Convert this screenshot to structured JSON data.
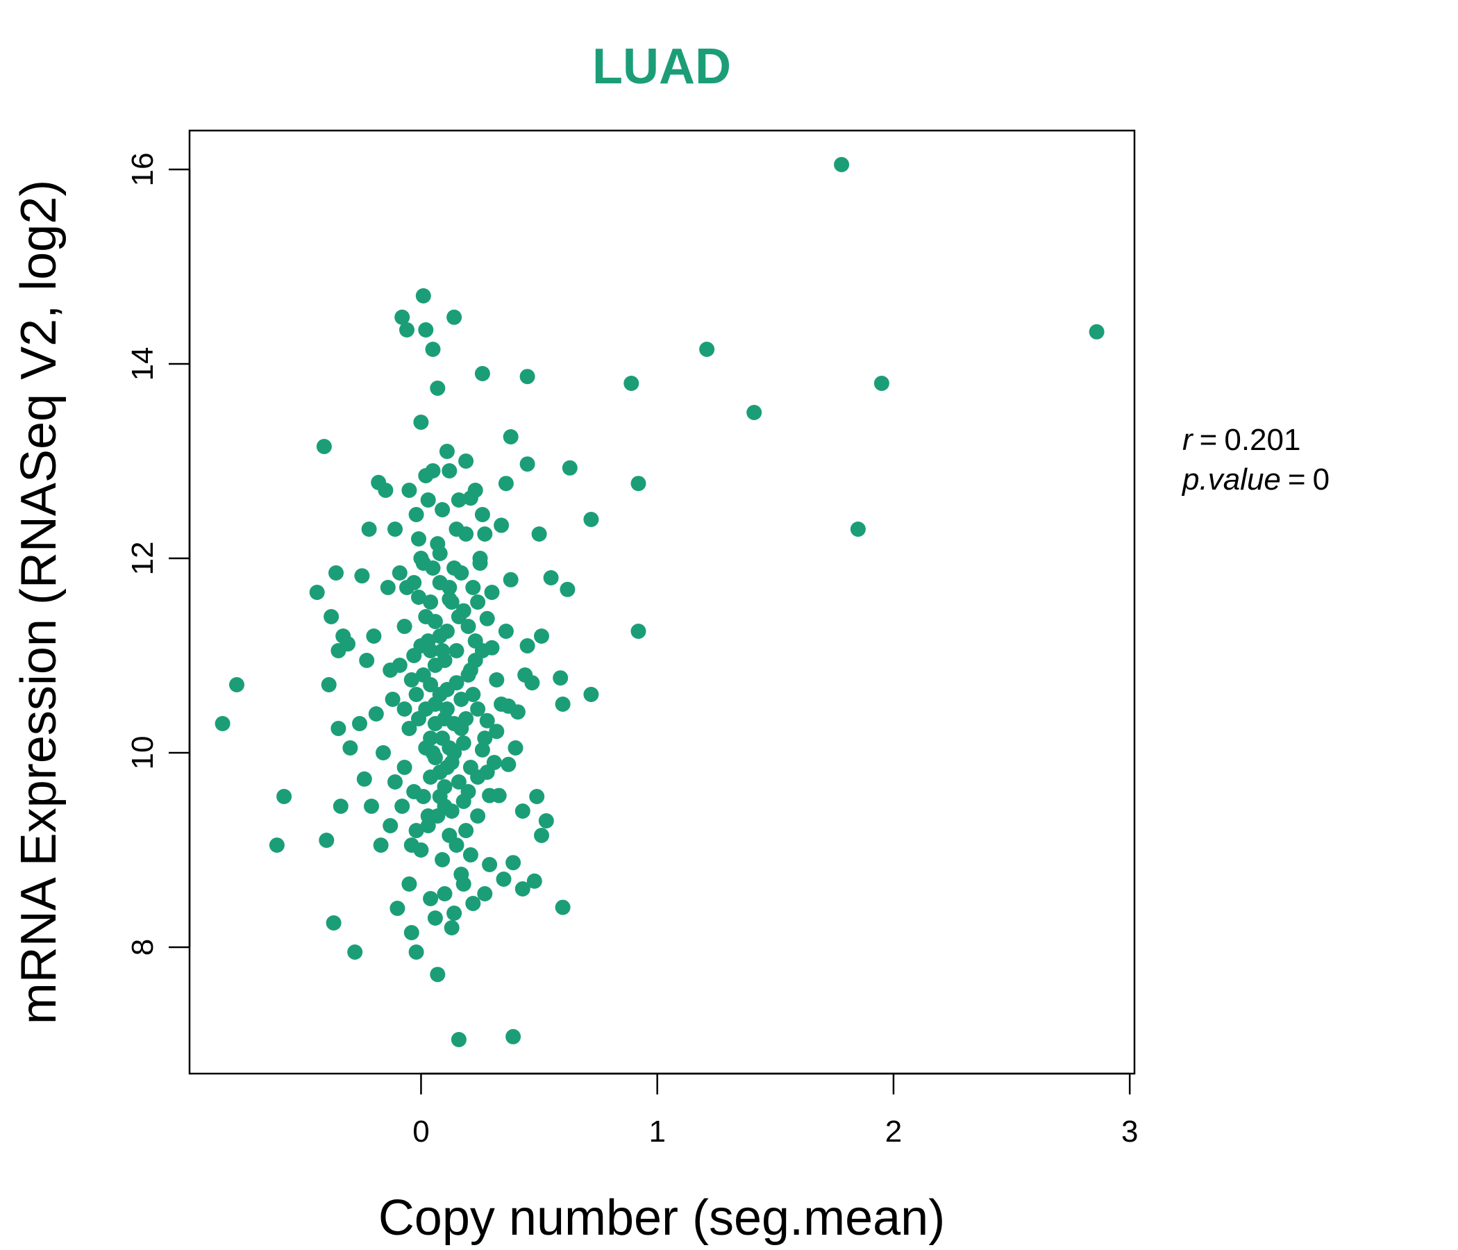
{
  "colors": {
    "accent": "#1b9e77",
    "axis": "#000000",
    "background": "#ffffff"
  },
  "chart_data": {
    "type": "scatter",
    "title": "LUAD",
    "xlabel": "Copy number (seg.mean)",
    "ylabel": "mRNA Expression (RNASeq V2, log2)",
    "xlim": [
      -0.98,
      3.02
    ],
    "ylim": [
      6.7,
      16.4
    ],
    "xticks": [
      0,
      1,
      2,
      3
    ],
    "yticks": [
      8,
      10,
      12,
      14,
      16
    ],
    "grid": false,
    "annotation": {
      "r_symbol": "r",
      "r_value": "0.201",
      "p_symbol": "p.value",
      "p_value": "0",
      "equals": "="
    },
    "series": [
      {
        "color": "#1b9e77",
        "points": [
          [
            1.78,
            16.05
          ],
          [
            2.86,
            14.33
          ],
          [
            1.21,
            14.15
          ],
          [
            1.95,
            13.8
          ],
          [
            0.89,
            13.8
          ],
          [
            1.41,
            13.5
          ],
          [
            0.92,
            12.77
          ],
          [
            1.85,
            12.3
          ],
          [
            0.92,
            11.25
          ],
          [
            0.72,
            12.4
          ],
          [
            0.72,
            10.6
          ],
          [
            0.63,
            12.93
          ],
          [
            0.62,
            11.68
          ],
          [
            0.6,
            10.5
          ],
          [
            0.6,
            8.41
          ],
          [
            0.59,
            10.77
          ],
          [
            0.55,
            11.8
          ],
          [
            0.53,
            9.3
          ],
          [
            0.51,
            11.2
          ],
          [
            0.51,
            9.15
          ],
          [
            0.5,
            12.25
          ],
          [
            0.49,
            9.55
          ],
          [
            0.48,
            8.68
          ],
          [
            0.47,
            10.72
          ],
          [
            0.45,
            13.87
          ],
          [
            0.45,
            12.97
          ],
          [
            0.45,
            11.1
          ],
          [
            0.44,
            10.8
          ],
          [
            0.43,
            9.4
          ],
          [
            0.43,
            8.6
          ],
          [
            0.41,
            10.42
          ],
          [
            0.4,
            10.05
          ],
          [
            0.39,
            7.08
          ],
          [
            0.39,
            8.87
          ],
          [
            0.38,
            13.25
          ],
          [
            0.38,
            11.78
          ],
          [
            0.37,
            10.48
          ],
          [
            0.37,
            9.88
          ],
          [
            0.36,
            12.77
          ],
          [
            0.35,
            8.7
          ],
          [
            0.34,
            12.34
          ],
          [
            0.33,
            9.56
          ],
          [
            0.32,
            10.22
          ],
          [
            0.31,
            9.9
          ],
          [
            0.3,
            11.08
          ],
          [
            0.29,
            9.56
          ],
          [
            0.28,
            11.38
          ],
          [
            0.28,
            10.33
          ],
          [
            0.27,
            12.25
          ],
          [
            0.27,
            8.55
          ],
          [
            0.26,
            13.9
          ],
          [
            0.26,
            10.03
          ],
          [
            0.25,
            12.0
          ],
          [
            0.24,
            10.45
          ],
          [
            0.24,
            9.75
          ],
          [
            0.23,
            12.7
          ],
          [
            0.22,
            11.7
          ],
          [
            0.21,
            12.62
          ],
          [
            0.21,
            10.85
          ],
          [
            0.2,
            9.6
          ],
          [
            0.19,
            13.0
          ],
          [
            0.19,
            9.2
          ],
          [
            0.18,
            11.46
          ],
          [
            0.17,
            10.25
          ],
          [
            0.17,
            8.75
          ],
          [
            0.16,
            7.05
          ],
          [
            0.15,
            12.3
          ],
          [
            0.15,
            11.05
          ],
          [
            0.14,
            14.48
          ],
          [
            0.14,
            10.0
          ],
          [
            0.13,
            9.9
          ],
          [
            0.13,
            8.2
          ],
          [
            0.12,
            11.58
          ],
          [
            0.11,
            10.65
          ],
          [
            0.11,
            13.1
          ],
          [
            0.1,
            9.45
          ],
          [
            0.09,
            12.5
          ],
          [
            0.08,
            11.2
          ],
          [
            0.08,
            9.8
          ],
          [
            0.07,
            7.72
          ],
          [
            0.07,
            13.75
          ],
          [
            0.06,
            10.5
          ],
          [
            0.06,
            8.3
          ],
          [
            0.05,
            14.15
          ],
          [
            0.05,
            11.9
          ],
          [
            0.04,
            10.15
          ],
          [
            0.04,
            8.5
          ],
          [
            0.03,
            12.6
          ],
          [
            0.03,
            9.35
          ],
          [
            0.02,
            14.35
          ],
          [
            0.02,
            11.4
          ],
          [
            0.01,
            14.7
          ],
          [
            0.01,
            10.8
          ],
          [
            0.0,
            9.0
          ],
          [
            0.0,
            13.4
          ],
          [
            -0.01,
            12.2
          ],
          [
            -0.02,
            10.6
          ],
          [
            -0.02,
            7.95
          ],
          [
            -0.03,
            11.75
          ],
          [
            -0.03,
            9.6
          ],
          [
            -0.04,
            8.15
          ],
          [
            -0.05,
            12.7
          ],
          [
            -0.05,
            10.25
          ],
          [
            -0.06,
            14.35
          ],
          [
            -0.07,
            11.3
          ],
          [
            -0.07,
            9.85
          ],
          [
            -0.08,
            14.48
          ],
          [
            -0.09,
            10.9
          ],
          [
            -0.1,
            8.4
          ],
          [
            -0.11,
            12.3
          ],
          [
            -0.12,
            10.55
          ],
          [
            -0.13,
            9.25
          ],
          [
            -0.14,
            11.7
          ],
          [
            -0.15,
            12.7
          ],
          [
            -0.16,
            10.0
          ],
          [
            -0.17,
            9.05
          ],
          [
            -0.18,
            12.78
          ],
          [
            -0.19,
            10.4
          ],
          [
            -0.2,
            11.2
          ],
          [
            -0.21,
            9.45
          ],
          [
            -0.22,
            12.3
          ],
          [
            -0.23,
            10.95
          ],
          [
            -0.24,
            9.73
          ],
          [
            -0.25,
            11.82
          ],
          [
            -0.26,
            10.3
          ],
          [
            -0.28,
            7.95
          ],
          [
            -0.3,
            10.05
          ],
          [
            -0.31,
            11.12
          ],
          [
            -0.33,
            11.2
          ],
          [
            -0.34,
            9.45
          ],
          [
            -0.35,
            10.25
          ],
          [
            -0.35,
            11.05
          ],
          [
            -0.36,
            11.85
          ],
          [
            -0.37,
            8.25
          ],
          [
            -0.38,
            11.4
          ],
          [
            -0.39,
            10.7
          ],
          [
            -0.4,
            9.1
          ],
          [
            -0.41,
            13.15
          ],
          [
            -0.44,
            11.65
          ],
          [
            -0.58,
            9.55
          ],
          [
            -0.61,
            9.05
          ],
          [
            -0.78,
            10.7
          ],
          [
            -0.84,
            10.3
          ],
          [
            0.15,
            10.72
          ],
          [
            0.12,
            9.15
          ],
          [
            0.1,
            10.35
          ],
          [
            0.08,
            12.05
          ],
          [
            0.06,
            10.9
          ],
          [
            0.04,
            11.55
          ],
          [
            0.02,
            10.05
          ],
          [
            0.0,
            11.1
          ],
          [
            -0.02,
            12.45
          ],
          [
            -0.04,
            9.05
          ],
          [
            0.18,
            10.1
          ],
          [
            0.2,
            11.3
          ],
          [
            0.22,
            10.6
          ],
          [
            0.24,
            9.35
          ],
          [
            0.26,
            11.05
          ],
          [
            0.14,
            11.9
          ],
          [
            0.16,
            9.7
          ],
          [
            0.12,
            12.9
          ],
          [
            0.1,
            8.55
          ],
          [
            0.08,
            11.75
          ],
          [
            0.06,
            9.95
          ],
          [
            0.04,
            10.7
          ],
          [
            0.02,
            12.85
          ],
          [
            -0.01,
            10.35
          ],
          [
            -0.03,
            11.0
          ],
          [
            -0.05,
            8.65
          ],
          [
            -0.07,
            10.45
          ],
          [
            -0.09,
            11.85
          ],
          [
            -0.11,
            9.7
          ],
          [
            -0.13,
            10.85
          ],
          [
            0.3,
            11.65
          ],
          [
            0.32,
            10.75
          ],
          [
            0.28,
            9.8
          ],
          [
            0.26,
            12.45
          ],
          [
            0.34,
            10.5
          ],
          [
            0.36,
            11.25
          ],
          [
            0.19,
            12.25
          ],
          [
            0.17,
            10.55
          ],
          [
            0.13,
            9.4
          ],
          [
            0.11,
            11.25
          ],
          [
            0.09,
            10.15
          ],
          [
            0.07,
            9.35
          ],
          [
            0.05,
            12.9
          ],
          [
            0.03,
            11.15
          ],
          [
            0.01,
            9.55
          ],
          [
            -0.01,
            11.6
          ],
          [
            0.21,
            8.95
          ],
          [
            0.23,
            10.95
          ],
          [
            0.25,
            11.95
          ],
          [
            0.27,
            10.15
          ],
          [
            0.29,
            8.85
          ],
          [
            0.15,
            9.05
          ],
          [
            0.13,
            11.55
          ],
          [
            0.11,
            10.45
          ],
          [
            0.09,
            8.9
          ],
          [
            0.07,
            12.15
          ],
          [
            0.05,
            10.0
          ],
          [
            0.03,
            9.25
          ],
          [
            0.01,
            11.95
          ],
          [
            0.12,
            10.05
          ],
          [
            0.14,
            8.35
          ],
          [
            0.16,
            11.4
          ],
          [
            0.18,
            9.5
          ],
          [
            0.2,
            10.8
          ],
          [
            0.22,
            8.45
          ],
          [
            0.24,
            11.55
          ],
          [
            0.1,
            9.65
          ],
          [
            0.08,
            10.6
          ],
          [
            0.06,
            11.35
          ],
          [
            0.04,
            9.75
          ],
          [
            0.02,
            10.45
          ],
          [
            0.0,
            12.0
          ],
          [
            -0.02,
            9.2
          ],
          [
            -0.04,
            10.75
          ],
          [
            -0.06,
            11.7
          ],
          [
            -0.08,
            9.45
          ],
          [
            0.17,
            11.85
          ],
          [
            0.19,
            10.35
          ],
          [
            0.21,
            9.85
          ],
          [
            0.23,
            11.15
          ],
          [
            0.14,
            10.3
          ],
          [
            0.12,
            11.7
          ],
          [
            0.1,
            10.95
          ],
          [
            0.08,
            9.55
          ],
          [
            0.06,
            10.3
          ],
          [
            0.04,
            11.05
          ],
          [
            0.16,
            12.6
          ],
          [
            0.18,
            8.65
          ],
          [
            0.09,
            11.05
          ],
          [
            0.11,
            9.85
          ]
        ]
      }
    ]
  }
}
